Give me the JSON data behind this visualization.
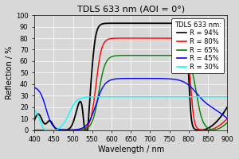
{
  "title": "TDLS 633 nm (AOI = 0°)",
  "xlabel": "Wavelength / nm",
  "ylabel": "Reflection / %",
  "xlim": [
    400,
    900
  ],
  "ylim": [
    0,
    100
  ],
  "xticks": [
    400,
    450,
    500,
    550,
    600,
    650,
    700,
    750,
    800,
    850,
    900
  ],
  "yticks": [
    0,
    10,
    20,
    30,
    40,
    50,
    60,
    70,
    80,
    90,
    100
  ],
  "legend_title": "TDLS 633 nm:",
  "legend_entries": [
    "R = 94%",
    "R = 80%",
    "R = 65%",
    "R = 45%",
    "R = 30%"
  ],
  "line_colors": [
    "black",
    "red",
    "green",
    "blue",
    "cyan"
  ],
  "background_color": "#d8d8d8",
  "title_fontsize": 8,
  "axis_fontsize": 7,
  "tick_fontsize": 6,
  "legend_fontsize": 6
}
